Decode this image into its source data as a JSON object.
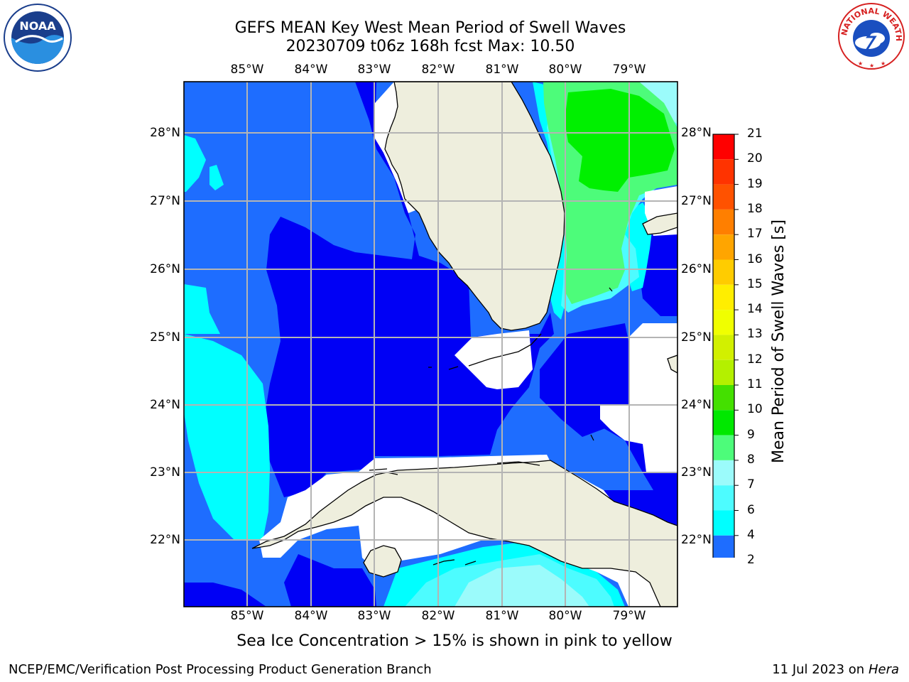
{
  "title": {
    "line1": "GEFS MEAN Key West Mean Period of Swell Waves",
    "line2": "20230709 t06z 168h fcst   Max: 10.50"
  },
  "map": {
    "lon_labels": [
      "85°W",
      "84°W",
      "83°W",
      "82°W",
      "81°W",
      "80°W",
      "79°W"
    ],
    "lat_labels": [
      "28°N",
      "27°N",
      "26°N",
      "25°N",
      "24°N",
      "23°N",
      "22°N"
    ],
    "colors": {
      "band_2_4": "#1e6dff",
      "band_lt2": "#0000f5",
      "band_4_6": "#00ffff",
      "band_6_8": "#4dfcff",
      "band_8_9": "#9bfbfb",
      "band_9_10": "#4dfc7a",
      "band_10_11": "#00f000",
      "land": "#eeeedd",
      "nodata": "#ffffff",
      "grid": "#b4b4b4"
    }
  },
  "colorbar": {
    "label": "Mean Period of Swell Waves [s]",
    "ticks": [
      "21",
      "20",
      "19",
      "18",
      "17",
      "16",
      "15",
      "14",
      "13",
      "12",
      "11",
      "10",
      "9",
      "8",
      "7",
      "6",
      "4",
      "2"
    ],
    "colors": [
      "#ff0000",
      "#ff3300",
      "#ff5200",
      "#ff7f00",
      "#ffa500",
      "#ffcc00",
      "#ffee00",
      "#f0ff00",
      "#d2f000",
      "#b4f000",
      "#44e000",
      "#00e800",
      "#4dfc7a",
      "#9bfbfb",
      "#4dfcff",
      "#00ffff",
      "#1e6dff"
    ],
    "under_color": "#0000f5"
  },
  "note": "Sea Ice Concentration > 15% is shown in pink to yellow",
  "footer": {
    "left": "NCEP/EMC/Verification Post Processing Product Generation Branch",
    "date": "11 Jul 2023 on ",
    "machine": "Hera"
  },
  "logos": {
    "noaa_text": "NOAA",
    "nws_text": "NATIONAL WEATHER SERVICE"
  }
}
